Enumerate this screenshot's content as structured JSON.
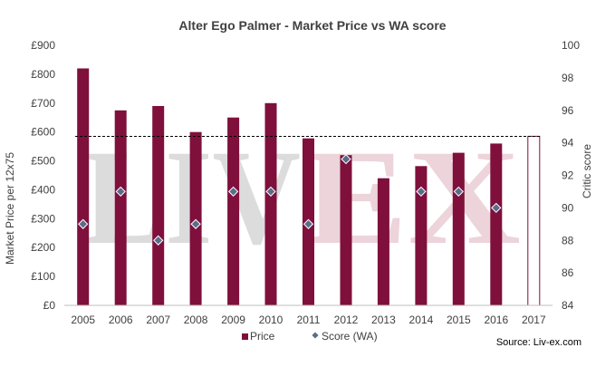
{
  "chart_data": {
    "type": "bar+scatter",
    "title": "Alter Ego Palmer - Market Price vs WA score",
    "categories": [
      "2005",
      "2006",
      "2007",
      "2008",
      "2009",
      "2010",
      "2011",
      "2012",
      "2013",
      "2014",
      "2015",
      "2016",
      "2017"
    ],
    "series": [
      {
        "name": "Price",
        "type": "bar",
        "axis": "left",
        "values": [
          820,
          675,
          690,
          600,
          650,
          700,
          578,
          520,
          440,
          482,
          528,
          560,
          585
        ],
        "outline_only_categories": [
          "2017"
        ]
      },
      {
        "name": "Score (WA)",
        "type": "scatter",
        "axis": "right",
        "values": [
          89,
          91,
          88,
          89,
          91,
          91,
          89,
          93,
          null,
          91,
          91,
          90,
          null
        ]
      }
    ],
    "reference_line": {
      "value": 585,
      "axis": "left",
      "style": "dashed"
    },
    "y_left": {
      "label": "Market Price per 12x75",
      "min": 0,
      "max": 900,
      "step": 100,
      "tick_labels": [
        "£0",
        "£100",
        "£200",
        "£300",
        "£400",
        "£500",
        "£600",
        "£700",
        "£800",
        "£900"
      ]
    },
    "y_right": {
      "label": "Critic score",
      "min": 84,
      "max": 100,
      "step": 2,
      "tick_labels": [
        "84",
        "86",
        "88",
        "90",
        "92",
        "94",
        "96",
        "98",
        "100"
      ]
    },
    "grid": false,
    "legend": {
      "position": "bottom-center",
      "entries": [
        "Price",
        "Score (WA)"
      ]
    },
    "source": "Source: Liv-ex.com",
    "watermark": {
      "part1": "LIV",
      "part2": "EX"
    },
    "colors": {
      "bar": "#7f0f3b",
      "marker": "#5b6b8c",
      "marker_edge": "#ffffff",
      "reference": "#000000",
      "watermark_gray": "#dcdcdc",
      "watermark_pink": "#ecd4da"
    }
  }
}
